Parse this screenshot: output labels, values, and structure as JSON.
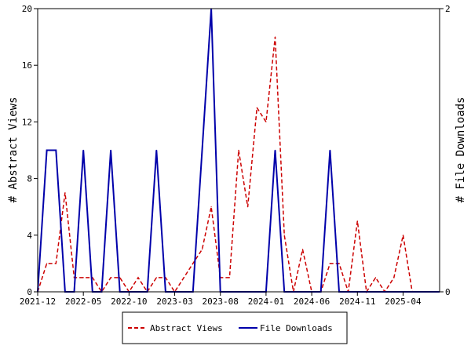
{
  "chart_data": {
    "type": "line",
    "x": [
      "2021-12",
      "2022-01",
      "2022-02",
      "2022-03",
      "2022-04",
      "2022-05",
      "2022-06",
      "2022-07",
      "2022-08",
      "2022-09",
      "2022-10",
      "2022-11",
      "2022-12",
      "2023-01",
      "2023-02",
      "2023-03",
      "2023-04",
      "2023-05",
      "2023-06",
      "2023-07",
      "2023-08",
      "2023-09",
      "2023-10",
      "2023-11",
      "2023-12",
      "2024-01",
      "2024-02",
      "2024-03",
      "2024-04",
      "2024-05",
      "2024-06",
      "2024-07",
      "2024-08",
      "2024-09",
      "2024-10",
      "2024-11",
      "2024-12",
      "2025-01",
      "2025-02",
      "2025-03",
      "2025-04",
      "2025-05",
      "2025-06",
      "2025-07",
      "2025-08"
    ],
    "series": [
      {
        "name": "Abstract Views",
        "axis": "left",
        "color": "#cc0000",
        "dash": true,
        "values": [
          0,
          2,
          2,
          7,
          1,
          1,
          1,
          0,
          1,
          1,
          0,
          1,
          0,
          1,
          1,
          0,
          1,
          2,
          3,
          6,
          1,
          1,
          10,
          6,
          13,
          12,
          18,
          4,
          0,
          3,
          0,
          0,
          2,
          2,
          0,
          5,
          0,
          1,
          0,
          1,
          4,
          0,
          0,
          0,
          0
        ]
      },
      {
        "name": "File Downloads",
        "axis": "right",
        "color": "#0000aa",
        "dash": false,
        "values": [
          0,
          1,
          1,
          0,
          0,
          1,
          0,
          0,
          1,
          0,
          0,
          0,
          0,
          1,
          0,
          0,
          0,
          0,
          1,
          2,
          0,
          0,
          0,
          0,
          0,
          0,
          1,
          0,
          0,
          0,
          0,
          0,
          1,
          0,
          0,
          0,
          0,
          0,
          0,
          0,
          0,
          0,
          0,
          0,
          0
        ]
      }
    ],
    "x_ticks": [
      "2021-12",
      "2022-05",
      "2022-10",
      "2023-03",
      "2023-08",
      "2024-01",
      "2024-06",
      "2024-11",
      "2025-04"
    ],
    "y_left": {
      "label": "# Abstract Views",
      "lim": [
        0,
        20
      ],
      "ticks": [
        "0",
        "4",
        "8",
        "12",
        "16",
        "20"
      ]
    },
    "y_right": {
      "label": "# File Downloads",
      "lim": [
        0,
        2
      ],
      "ticks": [
        "0",
        "2"
      ]
    },
    "legend": {
      "placement": "bottom",
      "entries": [
        "Abstract Views",
        "File Downloads"
      ]
    },
    "grid": false
  }
}
